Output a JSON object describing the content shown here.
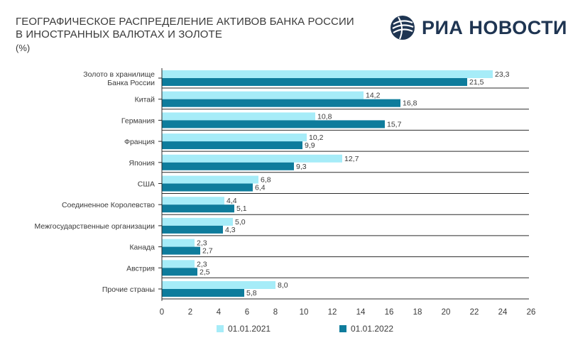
{
  "header": {
    "title_line1": "ГЕОГРАФИЧЕСКОЕ РАСПРЕДЕЛЕНИЕ АКТИВОВ БАНКА РОССИИ",
    "title_line2": "В ИНОСТРАННЫХ ВАЛЮТАХ И ЗОЛОТЕ",
    "unit": "(%)"
  },
  "logo": {
    "text": "РИА НОВОСТИ",
    "icon": "ria-globe-icon",
    "color": "#1f3552"
  },
  "chart_data": {
    "type": "bar",
    "orientation": "horizontal",
    "categories": [
      [
        "Золото в хранилище",
        "Банка России"
      ],
      [
        "Китай"
      ],
      [
        "Германия"
      ],
      [
        "Франция"
      ],
      [
        "Япония"
      ],
      [
        "США"
      ],
      [
        "Соединенное Королевство"
      ],
      [
        "Межгосударственные организации"
      ],
      [
        "Канада"
      ],
      [
        "Австрия"
      ],
      [
        "Прочие страны"
      ]
    ],
    "series": [
      {
        "name": "01.01.2021",
        "color": "#a6ecf8",
        "values": [
          23.3,
          14.2,
          10.8,
          10.2,
          12.7,
          6.8,
          4.4,
          5.0,
          2.3,
          2.3,
          8.0
        ],
        "labels": [
          "23,3",
          "14,2",
          "10,8",
          "10,2",
          "12,7",
          "6,8",
          "4,4",
          "5,0",
          "2,3",
          "2,3",
          "8,0"
        ]
      },
      {
        "name": "01.01.2022",
        "color": "#0e7c9c",
        "values": [
          21.5,
          16.8,
          15.7,
          9.9,
          9.3,
          6.4,
          5.1,
          4.3,
          2.7,
          2.5,
          5.8
        ],
        "labels": [
          "21,5",
          "16,8",
          "15,7",
          "9,9",
          "9,3",
          "6,4",
          "5,1",
          "4,3",
          "2,7",
          "2,5",
          "5,8"
        ]
      }
    ],
    "xlim": [
      0,
      26
    ],
    "xticks": [
      0,
      2,
      4,
      6,
      8,
      10,
      12,
      14,
      16,
      18,
      20,
      22,
      24,
      26
    ],
    "grid": false,
    "legend": "bottom"
  }
}
